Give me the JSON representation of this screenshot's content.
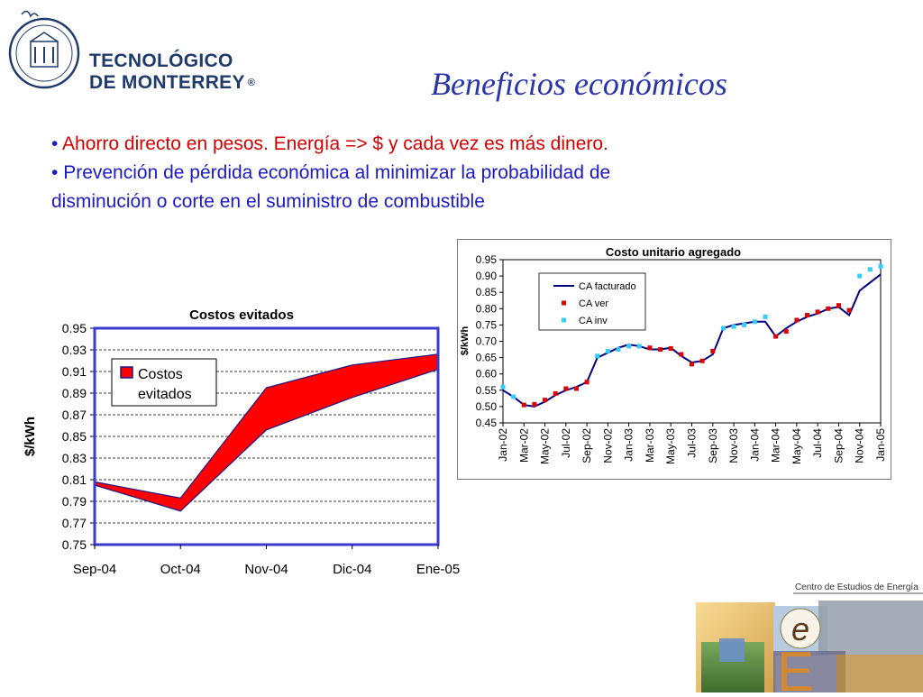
{
  "header": {
    "logo_text": [
      "TECNOLÓGICO",
      "DE MONTERREY"
    ],
    "logo_mark": "®"
  },
  "slide": {
    "title": "Beneficios económicos",
    "bullets": [
      {
        "marker": "•",
        "text": "Ahorro directo en pesos. Energía => $ y cada vez es más dinero.",
        "color": "#d40000"
      },
      {
        "marker": "•",
        "text": "Prevención de pérdida económica al minimizar la probabilidad de",
        "color": "#1a1ac8"
      },
      {
        "marker": "",
        "text": "disminución o corte en el suministro de combustible",
        "color": "#1a1ac8"
      }
    ]
  },
  "footer": {
    "center_label": "Centro de Estudios de Energía",
    "letters": [
      "e",
      "E"
    ]
  },
  "chart_data": [
    {
      "type": "area",
      "title": "Costos evitados",
      "ylabel": "$/kWh",
      "xlabel": "",
      "categories": [
        "Sep-04",
        "Oct-04",
        "Nov-04",
        "Dic-04",
        "Ene-05"
      ],
      "series": [
        {
          "name": "Costos evitados",
          "upper": [
            0.808,
            0.793,
            0.895,
            0.916,
            0.926
          ],
          "lower": [
            0.805,
            0.781,
            0.856,
            0.886,
            0.912
          ],
          "color": "#ff0000"
        }
      ],
      "ylim": [
        0.75,
        0.95
      ],
      "yticks": [
        0.75,
        0.77,
        0.79,
        0.81,
        0.83,
        0.85,
        0.87,
        0.89,
        0.91,
        0.93,
        0.95
      ],
      "ytick_labels": [
        "0.75",
        "0.77",
        "0.79",
        "0.81",
        "0.83",
        "0.85",
        "0.87",
        "0.89",
        "0.91",
        "0.93",
        "0.95"
      ],
      "grid": "dashed horizontal",
      "legend": "top-left"
    },
    {
      "type": "line",
      "title": "Costo unitario agregado",
      "ylabel": "$/kWh",
      "xlabel": "",
      "ylim": [
        0.45,
        0.95
      ],
      "yticks": [
        0.45,
        0.5,
        0.55,
        0.6,
        0.65,
        0.7,
        0.75,
        0.8,
        0.85,
        0.9,
        0.95
      ],
      "ytick_labels": [
        "0.45",
        "0.50",
        "0.55",
        "0.60",
        "0.65",
        "0.70",
        "0.75",
        "0.80",
        "0.85",
        "0.90",
        "0.95"
      ],
      "x": [
        "Jan-02",
        "Feb-02",
        "Mar-02",
        "Apr-02",
        "May-02",
        "Jun-02",
        "Jul-02",
        "Aug-02",
        "Sep-02",
        "Oct-02",
        "Nov-02",
        "Dec-02",
        "Jan-03",
        "Feb-03",
        "Mar-03",
        "Apr-03",
        "May-03",
        "Jun-03",
        "Jul-03",
        "Aug-03",
        "Sep-03",
        "Oct-03",
        "Nov-03",
        "Dec-03",
        "Jan-04",
        "Feb-04",
        "Mar-04",
        "Apr-04",
        "May-04",
        "Jun-04",
        "Jul-04",
        "Aug-04",
        "Sep-04",
        "Oct-04",
        "Nov-04",
        "Dec-04",
        "Jan-05"
      ],
      "xtick_labels": [
        "Jan-02",
        "Mar-02",
        "May-02",
        "Jul-02",
        "Sep-02",
        "Nov-02",
        "Jan-03",
        "Mar-03",
        "May-03",
        "Jul-03",
        "Sep-03",
        "Nov-03",
        "Jan-04",
        "Mar-04",
        "May-04",
        "Jul-04",
        "Sep-04",
        "Nov-04",
        "Jan-05"
      ],
      "series": [
        {
          "name": "CA facturado",
          "style": "line",
          "color": "#00007f",
          "values": [
            0.55,
            0.53,
            0.505,
            0.5,
            0.515,
            0.535,
            0.55,
            0.56,
            0.575,
            0.65,
            0.665,
            0.68,
            0.69,
            0.685,
            0.675,
            0.675,
            0.68,
            0.655,
            0.635,
            0.64,
            0.66,
            0.74,
            0.75,
            0.755,
            0.76,
            0.76,
            0.715,
            0.74,
            0.76,
            0.775,
            0.785,
            0.8,
            0.805,
            0.78,
            0.855,
            0.88,
            0.905
          ]
        },
        {
          "name": "CA ver",
          "style": "markers",
          "color": "#e00000",
          "values": [
            null,
            null,
            0.505,
            0.507,
            0.52,
            0.54,
            0.555,
            0.555,
            0.575,
            null,
            null,
            null,
            null,
            null,
            0.68,
            0.675,
            0.678,
            0.66,
            0.63,
            0.64,
            0.67,
            null,
            null,
            null,
            null,
            null,
            0.715,
            0.73,
            0.765,
            0.78,
            0.79,
            0.8,
            0.81,
            0.795,
            null,
            null,
            null
          ]
        },
        {
          "name": "CA inv",
          "style": "markers",
          "color": "#33ccff",
          "values": [
            0.56,
            0.53,
            null,
            null,
            null,
            null,
            null,
            null,
            null,
            0.655,
            0.67,
            0.675,
            0.685,
            0.685,
            null,
            null,
            null,
            null,
            null,
            null,
            null,
            0.74,
            0.745,
            0.75,
            0.76,
            0.775,
            null,
            null,
            null,
            null,
            null,
            null,
            null,
            null,
            0.9,
            0.92,
            0.93
          ]
        }
      ],
      "grid": "none",
      "legend": "inside-top-center"
    }
  ]
}
